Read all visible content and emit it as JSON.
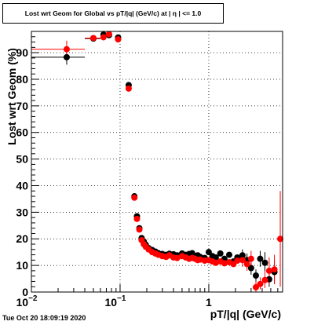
{
  "header": {
    "title": "Lost wrt Geom for Global vs pT/|q| (GeV/c) at |  η | <= 1.0"
  },
  "footer": {
    "timestamp": "Tue Oct 20 18:09:19 2020"
  },
  "colors": {
    "series_black": "#000000",
    "series_red": "#ff0000",
    "grid": "#000000"
  },
  "chart_data": {
    "type": "scatter",
    "title": "Lost wrt Geom for Global vs pT/|q| (GeV/c) at |  η | <= 1.0",
    "xlabel": "pT/|q| (GeV/c)",
    "ylabel": "Lost wrt Geom (%)",
    "xscale": "log",
    "xlim": [
      0.01,
      6.8
    ],
    "ylim": [
      0,
      98
    ],
    "grid": true,
    "legend": "none",
    "x_ticks": [
      {
        "value": 0.01,
        "base": "10",
        "exp": "−2"
      },
      {
        "value": 0.1,
        "base": "10",
        "exp": "−1"
      },
      {
        "value": 1,
        "base": "1",
        "exp": ""
      }
    ],
    "y_ticks": [
      {
        "value": 0,
        "label": "0"
      },
      {
        "value": 10,
        "label": "10"
      },
      {
        "value": 20,
        "label": "20"
      },
      {
        "value": 30,
        "label": "30"
      },
      {
        "value": 40,
        "label": "40"
      },
      {
        "value": 50,
        "label": "50"
      },
      {
        "value": 60,
        "label": "60"
      },
      {
        "value": 70,
        "label": "70"
      },
      {
        "value": 80,
        "label": "80"
      },
      {
        "value": 90,
        "label": "90"
      }
    ],
    "series": [
      {
        "color": "#000000",
        "points": [
          {
            "x": 0.025,
            "y": 88.3,
            "xlo": 0.01,
            "xhi": 0.04,
            "ylo": 85.5,
            "yhi": 91.5
          },
          {
            "x": 0.05,
            "y": 95.3,
            "xlo": 0.04,
            "xhi": 0.06,
            "ylo": 94.5,
            "yhi": 96.1
          },
          {
            "x": 0.065,
            "y": 96.8,
            "xlo": 0.06,
            "xhi": 0.07,
            "ylo": 96.0,
            "yhi": 97.6
          },
          {
            "x": 0.075,
            "y": 96.6,
            "xlo": 0.07,
            "xhi": 0.08,
            "ylo": 95.8,
            "yhi": 97.4
          },
          {
            "x": 0.095,
            "y": 95.7,
            "xlo": 0.09,
            "xhi": 0.1,
            "ylo": 94.9,
            "yhi": 96.5
          },
          {
            "x": 0.125,
            "y": 77.8,
            "xlo": 0.12,
            "xhi": 0.13,
            "ylo": 76.8,
            "yhi": 78.8
          },
          {
            "x": 0.145,
            "y": 36.0,
            "xlo": 0.14,
            "xhi": 0.15,
            "ylo": 35.0,
            "yhi": 37.0
          },
          {
            "x": 0.155,
            "y": 28.5
          },
          {
            "x": 0.165,
            "y": 24.0
          },
          {
            "x": 0.175,
            "y": 20.3
          },
          {
            "x": 0.185,
            "y": 19.0
          },
          {
            "x": 0.195,
            "y": 17.8
          },
          {
            "x": 0.21,
            "y": 16.5
          },
          {
            "x": 0.23,
            "y": 15.8
          },
          {
            "x": 0.25,
            "y": 15.2
          },
          {
            "x": 0.27,
            "y": 14.6
          },
          {
            "x": 0.3,
            "y": 14.3
          },
          {
            "x": 0.33,
            "y": 14.0
          },
          {
            "x": 0.36,
            "y": 14.4
          },
          {
            "x": 0.4,
            "y": 14.2
          },
          {
            "x": 0.44,
            "y": 13.8
          },
          {
            "x": 0.5,
            "y": 14.5
          },
          {
            "x": 0.55,
            "y": 14.0
          },
          {
            "x": 0.6,
            "y": 14.3
          },
          {
            "x": 0.65,
            "y": 14.6
          },
          {
            "x": 0.7,
            "y": 13.5
          },
          {
            "x": 0.75,
            "y": 13.8
          },
          {
            "x": 0.8,
            "y": 13.2
          },
          {
            "x": 0.9,
            "y": 12.8
          },
          {
            "x": 1.0,
            "y": 15.0
          },
          {
            "x": 1.1,
            "y": 13.5
          },
          {
            "x": 1.2,
            "y": 13.0
          },
          {
            "x": 1.35,
            "y": 14.5
          },
          {
            "x": 1.5,
            "y": 12.5
          },
          {
            "x": 1.7,
            "y": 14.0
          },
          {
            "x": 1.9,
            "y": 11.5
          },
          {
            "x": 2.1,
            "y": 13.0
          },
          {
            "x": 2.4,
            "y": 13.8,
            "ylo": 11.5,
            "yhi": 16.0
          },
          {
            "x": 2.7,
            "y": 12.0,
            "ylo": 9.5,
            "yhi": 14.5
          },
          {
            "x": 3.0,
            "y": 9.0,
            "ylo": 6.5,
            "yhi": 11.5
          },
          {
            "x": 3.4,
            "y": 6.2,
            "ylo": 4.0,
            "yhi": 8.5
          },
          {
            "x": 3.8,
            "y": 12.5,
            "ylo": 9.5,
            "yhi": 15.5
          },
          {
            "x": 4.3,
            "y": 11.0,
            "ylo": 7.0,
            "yhi": 15.0
          },
          {
            "x": 4.8,
            "y": 4.8,
            "ylo": 2.0,
            "yhi": 8.0
          },
          {
            "x": 5.5,
            "y": 7.5,
            "ylo": 3.0,
            "yhi": 12.0
          }
        ]
      },
      {
        "color": "#ff0000",
        "points": [
          {
            "x": 0.025,
            "y": 91.3,
            "xlo": 0.01,
            "xhi": 0.04,
            "ylo": 88.5,
            "yhi": 94.5
          },
          {
            "x": 0.05,
            "y": 95.5,
            "xlo": 0.04,
            "xhi": 0.06,
            "ylo": 94.7,
            "yhi": 96.3
          },
          {
            "x": 0.065,
            "y": 95.8,
            "xlo": 0.06,
            "xhi": 0.07,
            "ylo": 95.0,
            "yhi": 96.6
          },
          {
            "x": 0.075,
            "y": 97.0,
            "xlo": 0.07,
            "xhi": 0.08,
            "ylo": 96.2,
            "yhi": 97.8
          },
          {
            "x": 0.095,
            "y": 95.0,
            "xlo": 0.09,
            "xhi": 0.1,
            "ylo": 94.2,
            "yhi": 95.8
          },
          {
            "x": 0.125,
            "y": 76.5,
            "xlo": 0.12,
            "xhi": 0.13,
            "ylo": 75.5,
            "yhi": 77.5
          },
          {
            "x": 0.145,
            "y": 35.5,
            "xlo": 0.14,
            "xhi": 0.15,
            "ylo": 34.5,
            "yhi": 36.5
          },
          {
            "x": 0.155,
            "y": 27.5
          },
          {
            "x": 0.165,
            "y": 23.5
          },
          {
            "x": 0.175,
            "y": 19.5
          },
          {
            "x": 0.185,
            "y": 18.0
          },
          {
            "x": 0.195,
            "y": 17.0
          },
          {
            "x": 0.21,
            "y": 16.0
          },
          {
            "x": 0.23,
            "y": 15.0
          },
          {
            "x": 0.25,
            "y": 14.5
          },
          {
            "x": 0.27,
            "y": 14.0
          },
          {
            "x": 0.3,
            "y": 13.5
          },
          {
            "x": 0.33,
            "y": 13.2
          },
          {
            "x": 0.36,
            "y": 13.8
          },
          {
            "x": 0.4,
            "y": 13.0
          },
          {
            "x": 0.44,
            "y": 12.8
          },
          {
            "x": 0.5,
            "y": 13.5
          },
          {
            "x": 0.55,
            "y": 13.0
          },
          {
            "x": 0.6,
            "y": 12.5
          },
          {
            "x": 0.65,
            "y": 12.8
          },
          {
            "x": 0.7,
            "y": 12.5
          },
          {
            "x": 0.75,
            "y": 12.0
          },
          {
            "x": 0.8,
            "y": 12.2
          },
          {
            "x": 0.9,
            "y": 11.8
          },
          {
            "x": 1.0,
            "y": 12.0
          },
          {
            "x": 1.1,
            "y": 11.5
          },
          {
            "x": 1.2,
            "y": 11.0
          },
          {
            "x": 1.35,
            "y": 11.5
          },
          {
            "x": 1.5,
            "y": 10.8
          },
          {
            "x": 1.7,
            "y": 11.2
          },
          {
            "x": 1.9,
            "y": 10.5
          },
          {
            "x": 2.1,
            "y": 11.8
          },
          {
            "x": 2.4,
            "y": 12.0,
            "ylo": 9.5,
            "yhi": 14.5
          },
          {
            "x": 2.7,
            "y": 10.5,
            "ylo": 8.0,
            "yhi": 13.0
          },
          {
            "x": 3.0,
            "y": 12.5,
            "ylo": 9.5,
            "yhi": 15.5
          },
          {
            "x": 3.4,
            "y": 1.8,
            "ylo": 0.0,
            "yhi": 4.0
          },
          {
            "x": 3.8,
            "y": 3.0,
            "ylo": 1.0,
            "yhi": 5.5
          },
          {
            "x": 4.3,
            "y": 4.5,
            "ylo": 1.5,
            "yhi": 8.0
          },
          {
            "x": 4.8,
            "y": 8.0,
            "ylo": 3.0,
            "yhi": 13.0
          },
          {
            "x": 5.5,
            "y": 8.5,
            "ylo": 3.0,
            "yhi": 14.0
          },
          {
            "x": 6.4,
            "y": 20.0,
            "ylo": 2.0,
            "yhi": 38.0
          }
        ]
      }
    ]
  }
}
